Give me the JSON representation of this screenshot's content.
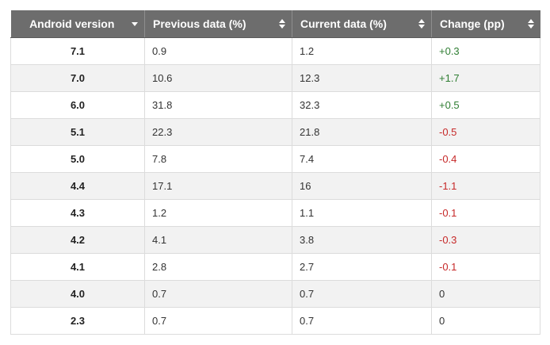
{
  "headers": [
    {
      "label": "Android version",
      "sort": "desc"
    },
    {
      "label": "Previous data (%)",
      "sort": "both"
    },
    {
      "label": "Current data (%)",
      "sort": "both"
    },
    {
      "label": "Change (pp)",
      "sort": "both"
    }
  ],
  "rows": [
    {
      "version": "7.1",
      "previous": "0.9",
      "current": "1.2",
      "change": "+0.3",
      "trend": "pos"
    },
    {
      "version": "7.0",
      "previous": "10.6",
      "current": "12.3",
      "change": "+1.7",
      "trend": "pos"
    },
    {
      "version": "6.0",
      "previous": "31.8",
      "current": "32.3",
      "change": "+0.5",
      "trend": "pos"
    },
    {
      "version": "5.1",
      "previous": "22.3",
      "current": "21.8",
      "change": "-0.5",
      "trend": "neg"
    },
    {
      "version": "5.0",
      "previous": "7.8",
      "current": "7.4",
      "change": "-0.4",
      "trend": "neg"
    },
    {
      "version": "4.4",
      "previous": "17.1",
      "current": "16",
      "change": "-1.1",
      "trend": "neg"
    },
    {
      "version": "4.3",
      "previous": "1.2",
      "current": "1.1",
      "change": "-0.1",
      "trend": "neg"
    },
    {
      "version": "4.2",
      "previous": "4.1",
      "current": "3.8",
      "change": "-0.3",
      "trend": "neg"
    },
    {
      "version": "4.1",
      "previous": "2.8",
      "current": "2.7",
      "change": "-0.1",
      "trend": "neg"
    },
    {
      "version": "4.0",
      "previous": "0.7",
      "current": "0.7",
      "change": "0",
      "trend": "zero"
    },
    {
      "version": "2.3",
      "previous": "0.7",
      "current": "0.7",
      "change": "0",
      "trend": "zero"
    }
  ],
  "colors": {
    "header_bg": "#6d6d6d",
    "positive": "#2e7d32",
    "negative": "#c62828",
    "stripe": "#f2f2f2"
  }
}
